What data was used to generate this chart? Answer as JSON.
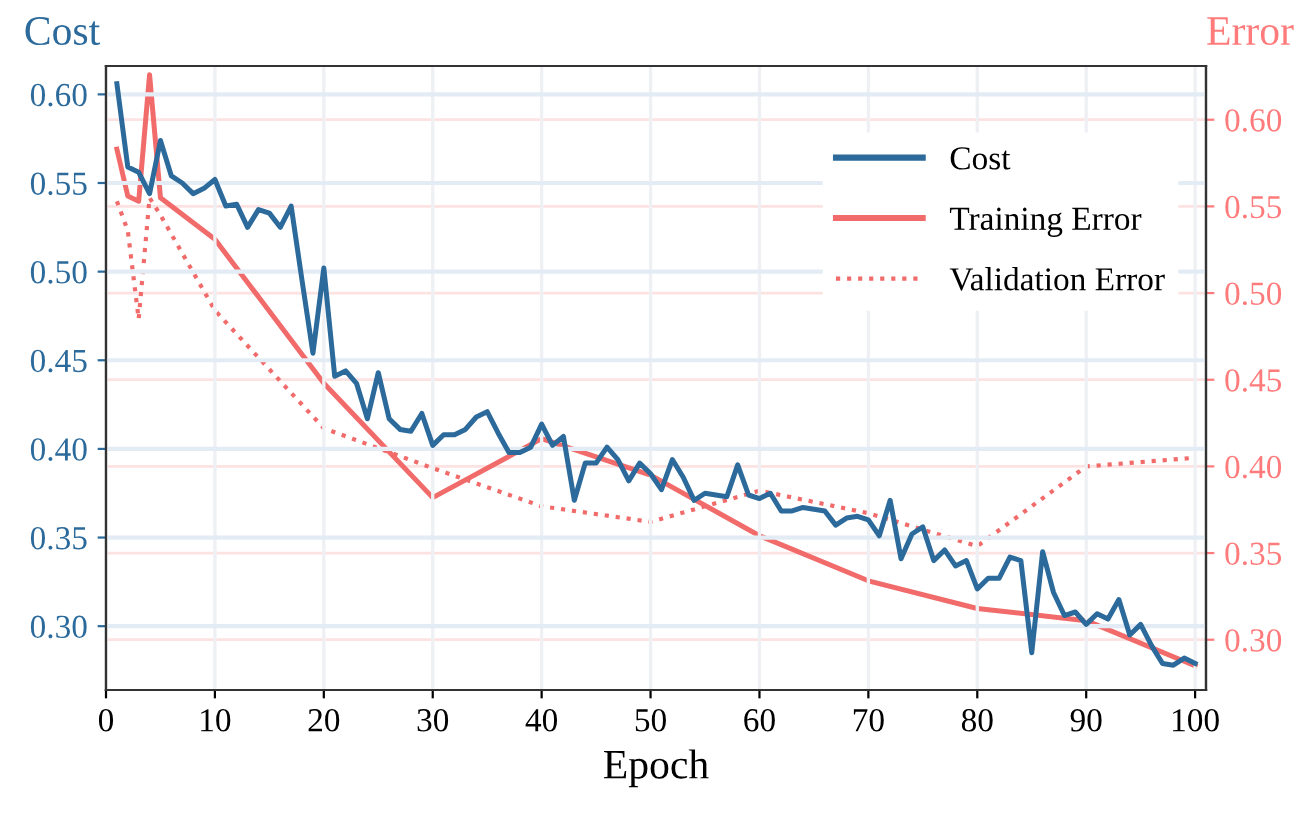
{
  "chart_data": {
    "type": "line",
    "xlabel": "Epoch",
    "ylabel": "Cost",
    "y2label": "Error",
    "xlim": [
      0,
      101
    ],
    "xticks": [
      0,
      10,
      20,
      30,
      40,
      50,
      60,
      70,
      80,
      90,
      100
    ],
    "ylim": [
      0.264,
      0.616
    ],
    "yticks": [
      {
        "value": 0.3,
        "label": "0.30"
      },
      {
        "value": 0.35,
        "label": "0.35"
      },
      {
        "value": 0.4,
        "label": "0.40"
      },
      {
        "value": 0.45,
        "label": "0.45"
      },
      {
        "value": 0.5,
        "label": "0.50"
      },
      {
        "value": 0.55,
        "label": "0.55"
      },
      {
        "value": 0.6,
        "label": "0.60"
      }
    ],
    "y2lim": [
      0.271,
      0.631
    ],
    "y2ticks": [
      {
        "value": 0.3,
        "label": "0.30"
      },
      {
        "value": 0.35,
        "label": "0.35"
      },
      {
        "value": 0.4,
        "label": "0.40"
      },
      {
        "value": 0.45,
        "label": "0.45"
      },
      {
        "value": 0.5,
        "label": "0.50"
      },
      {
        "value": 0.55,
        "label": "0.55"
      },
      {
        "value": 0.6,
        "label": "0.60"
      }
    ],
    "grid": true,
    "legend": "top right",
    "series": [
      {
        "name": "Cost",
        "color": "#2b6a9b",
        "line_style": "solid",
        "x": [
          1,
          2,
          3,
          4,
          5,
          6,
          7,
          8,
          9,
          10,
          11,
          12,
          13,
          14,
          15,
          16,
          17,
          18,
          19,
          20,
          21,
          22,
          23,
          24,
          25,
          26,
          27,
          28,
          29,
          30,
          31,
          32,
          33,
          34,
          35,
          36,
          37,
          38,
          39,
          40,
          41,
          42,
          43,
          44,
          45,
          46,
          47,
          48,
          49,
          50,
          51,
          52,
          53,
          54,
          55,
          56,
          57,
          58,
          59,
          60,
          61,
          62,
          63,
          64,
          65,
          66,
          67,
          68,
          69,
          70,
          71,
          72,
          73,
          74,
          75,
          76,
          77,
          78,
          79,
          80,
          81,
          82,
          83,
          84,
          85,
          86,
          87,
          88,
          89,
          90,
          91,
          92,
          93,
          94,
          95,
          96,
          97,
          98,
          99,
          100
        ],
        "values": [
          0.606,
          0.559,
          0.556,
          0.544,
          0.574,
          0.554,
          0.55,
          0.544,
          0.547,
          0.552,
          0.537,
          0.538,
          0.525,
          0.535,
          0.533,
          0.525,
          0.537,
          0.495,
          0.454,
          0.502,
          0.441,
          0.444,
          0.437,
          0.417,
          0.443,
          0.417,
          0.411,
          0.41,
          0.42,
          0.402,
          0.408,
          0.408,
          0.411,
          0.418,
          0.421,
          0.409,
          0.398,
          0.398,
          0.401,
          0.414,
          0.402,
          0.407,
          0.371,
          0.392,
          0.392,
          0.401,
          0.394,
          0.382,
          0.392,
          0.386,
          0.377,
          0.394,
          0.384,
          0.371,
          0.375,
          0.374,
          0.373,
          0.391,
          0.374,
          0.372,
          0.375,
          0.365,
          0.365,
          0.367,
          0.366,
          0.365,
          0.357,
          0.361,
          0.362,
          0.36,
          0.351,
          0.371,
          0.338,
          0.352,
          0.356,
          0.337,
          0.343,
          0.334,
          0.337,
          0.321,
          0.327,
          0.327,
          0.339,
          0.337,
          0.285,
          0.342,
          0.319,
          0.306,
          0.308,
          0.301,
          0.307,
          0.304,
          0.315,
          0.295,
          0.301,
          0.289,
          0.279,
          0.278,
          0.282,
          0.279
        ]
      },
      {
        "name": "Training Error",
        "color": "#f26b6b",
        "axis": "y2",
        "line_style": "solid",
        "x": [
          1,
          2,
          3,
          4,
          5,
          10,
          20,
          30,
          40,
          50,
          60,
          70,
          80,
          90,
          100
        ],
        "values": [
          0.583,
          0.556,
          0.553,
          0.626,
          0.555,
          0.531,
          0.448,
          0.382,
          0.416,
          0.395,
          0.36,
          0.334,
          0.318,
          0.311,
          0.285
        ]
      },
      {
        "name": "Validation Error",
        "color": "#f26b6b",
        "axis": "y2",
        "line_style": "dotted",
        "x": [
          1,
          2,
          3,
          4,
          5,
          10,
          20,
          30,
          40,
          50,
          60,
          70,
          80,
          90,
          100
        ],
        "values": [
          0.553,
          0.536,
          0.485,
          0.555,
          0.545,
          0.49,
          0.422,
          0.399,
          0.377,
          0.368,
          0.386,
          0.373,
          0.354,
          0.4,
          0.405
        ]
      }
    ]
  }
}
